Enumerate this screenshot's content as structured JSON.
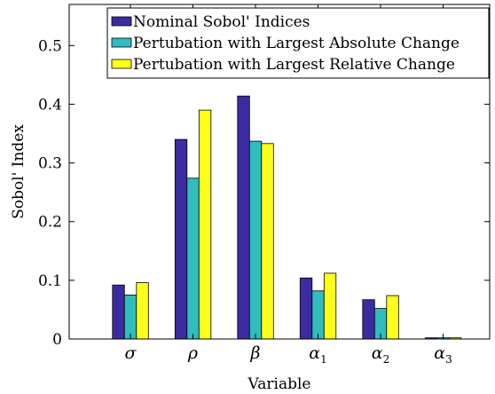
{
  "chart_data": {
    "type": "bar",
    "categories": [
      "σ",
      "ρ",
      "β",
      "α1",
      "α2",
      "α3"
    ],
    "category_display": [
      {
        "main": "σ",
        "sub": ""
      },
      {
        "main": "ρ",
        "sub": ""
      },
      {
        "main": "β",
        "sub": ""
      },
      {
        "main": "α",
        "sub": "1"
      },
      {
        "main": "α",
        "sub": "2"
      },
      {
        "main": "α",
        "sub": "3"
      }
    ],
    "series": [
      {
        "name": "Nominal Sobol' Indices",
        "color": "#3a2ca0",
        "values": [
          0.092,
          0.34,
          0.414,
          0.104,
          0.067,
          0.002
        ]
      },
      {
        "name": "Pertubation with Largest Absolute Change",
        "color": "#2fbdbd",
        "values": [
          0.075,
          0.274,
          0.337,
          0.082,
          0.052,
          0.002
        ]
      },
      {
        "name": "Pertubation with Largest Relative Change",
        "color": "#ffff1a",
        "values": [
          0.096,
          0.39,
          0.333,
          0.112,
          0.074,
          0.002
        ]
      }
    ],
    "xlabel": "Variable",
    "ylabel": "Sobol' Index",
    "ylim": [
      0,
      0.57
    ],
    "yticks": [
      0,
      0.1,
      0.2,
      0.3,
      0.4,
      0.5
    ],
    "ytick_labels": [
      "0",
      "0.1",
      "0.2",
      "0.3",
      "0.4",
      "0.5"
    ],
    "grid": false,
    "legend_position": "top-right"
  }
}
